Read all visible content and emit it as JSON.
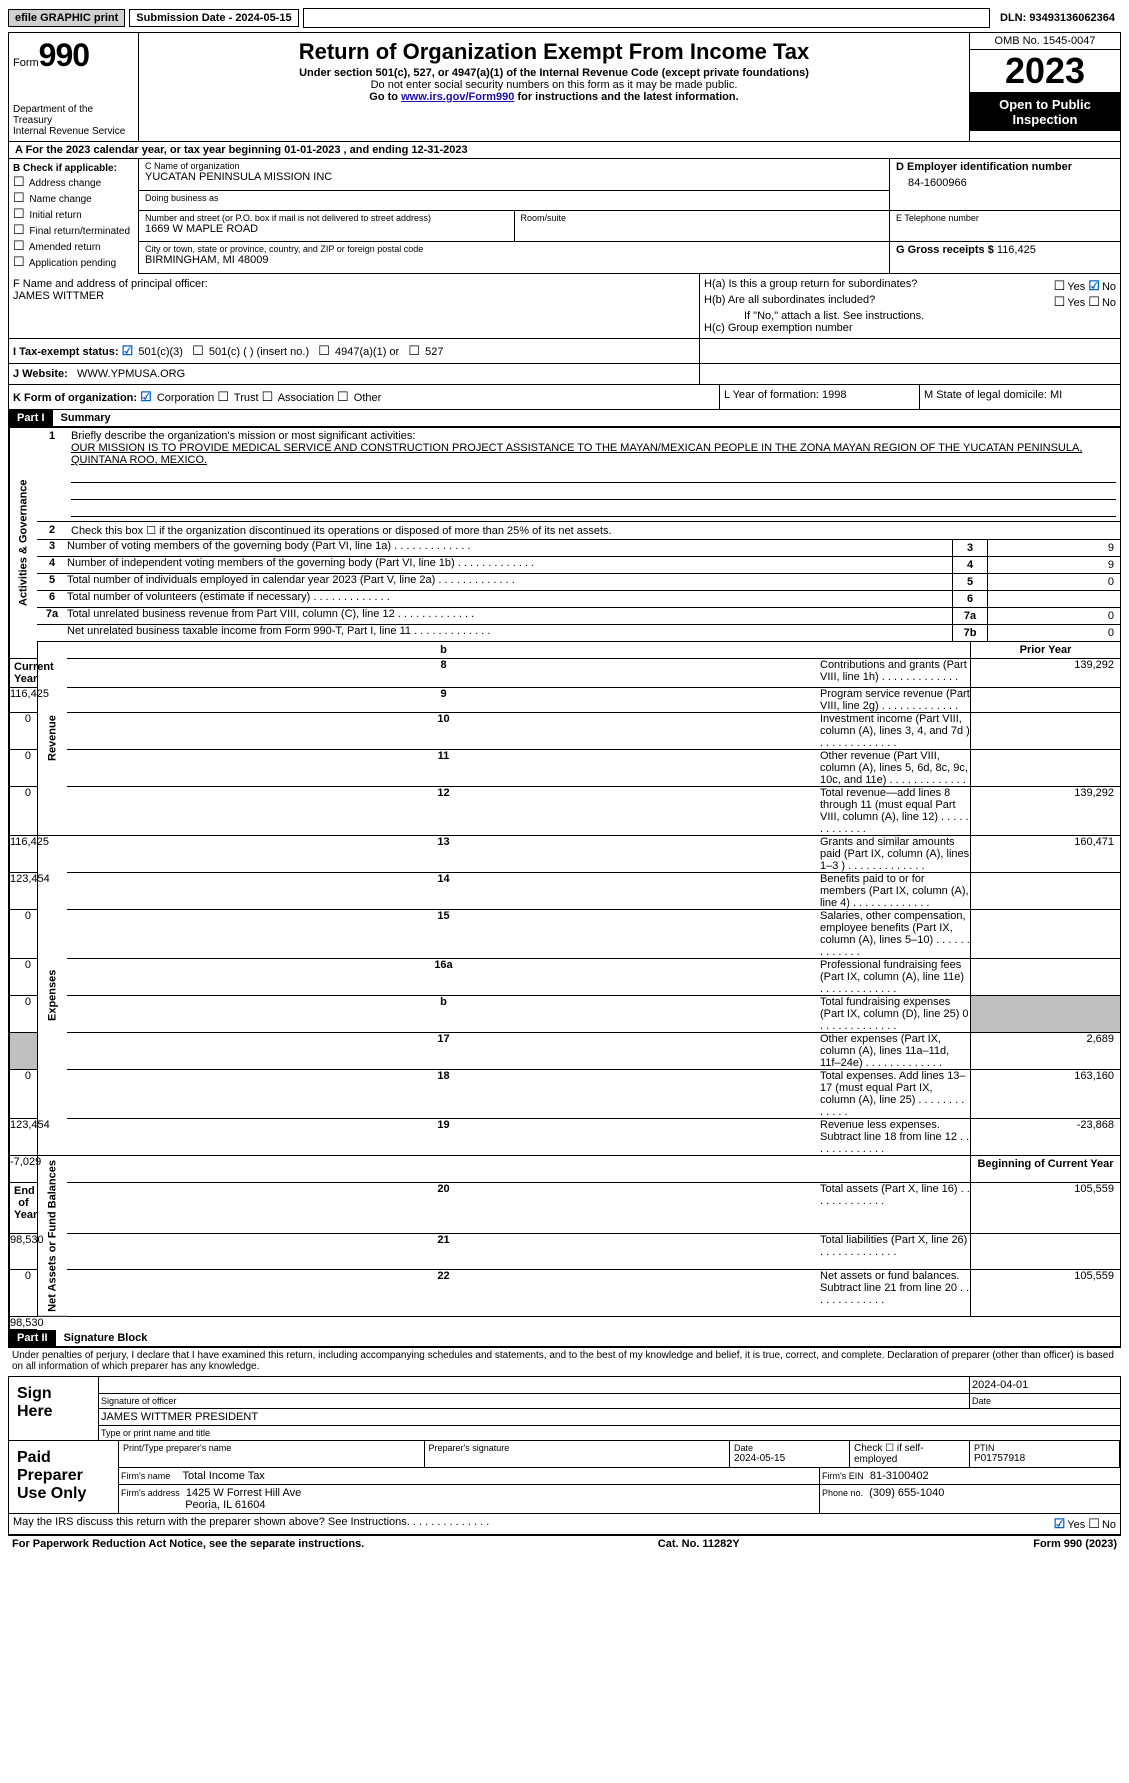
{
  "topbar": {
    "efile": "efile GRAPHIC print",
    "submission": "Submission Date - 2024-05-15",
    "dln": "DLN: 93493136062364"
  },
  "header": {
    "form_label": "Form",
    "form_number": "990",
    "dept": "Department of the Treasury",
    "irs": "Internal Revenue Service",
    "title": "Return of Organization Exempt From Income Tax",
    "subtitle": "Under section 501(c), 527, or 4947(a)(1) of the Internal Revenue Code (except private foundations)",
    "note1": "Do not enter social security numbers on this form as it may be made public.",
    "note2_prefix": "Go to ",
    "note2_link": "www.irs.gov/Form990",
    "note2_suffix": " for instructions and the latest information.",
    "omb": "OMB No. 1545-0047",
    "year": "2023",
    "open": "Open to Public Inspection"
  },
  "row_a": "A For the 2023 calendar year, or tax year beginning 01-01-2023    , and ending 12-31-2023",
  "section_b": {
    "label": "B Check if applicable:",
    "items": [
      "Address change",
      "Name change",
      "Initial return",
      "Final return/terminated",
      "Amended return",
      "Application pending"
    ]
  },
  "section_c": {
    "name_label": "C Name of organization",
    "name": "YUCATAN PENINSULA MISSION INC",
    "dba_label": "Doing business as",
    "street_label": "Number and street (or P.O. box if mail is not delivered to street address)",
    "street": "1669 W MAPLE ROAD",
    "room_label": "Room/suite",
    "city_label": "City or town, state or province, country, and ZIP or foreign postal code",
    "city": "BIRMINGHAM, MI  48009"
  },
  "section_d": {
    "ein_label": "D Employer identification number",
    "ein": "84-1600966",
    "phone_label": "E Telephone number",
    "gross_label": "G Gross receipts $",
    "gross": "116,425"
  },
  "section_f": {
    "label": "F  Name and address of principal officer:",
    "name": "JAMES WITTMER"
  },
  "section_h": {
    "ha": "H(a)  Is this a group return for subordinates?",
    "hb": "H(b)  Are all subordinates included?",
    "hb_note": "If \"No,\" attach a list. See instructions.",
    "hc": "H(c)  Group exemption number",
    "yes": "Yes",
    "no": "No"
  },
  "row_i": {
    "label": "I    Tax-exempt status:",
    "opt1": "501(c)(3)",
    "opt2": "501(c) (  ) (insert no.)",
    "opt3": "4947(a)(1) or",
    "opt4": "527"
  },
  "row_j": {
    "label": "J    Website:",
    "value": "WWW.YPMUSA.ORG"
  },
  "row_k": {
    "label": "K Form of organization:",
    "opts": [
      "Corporation",
      "Trust",
      "Association",
      "Other"
    ],
    "l": "L Year of formation: 1998",
    "m": "M State of legal domicile: MI"
  },
  "part1": {
    "header": "Part I",
    "title": "Summary",
    "q1_label": "Briefly describe the organization's mission or most significant activities:",
    "q1_text": "OUR MISSION IS TO PROVIDE MEDICAL SERVICE AND CONSTRUCTION PROJECT ASSISTANCE TO THE MAYAN/MEXICAN PEOPLE IN THE ZONA MAYAN REGION OF THE YUCATAN PENINSULA, QUINTANA ROO, MEXICO.",
    "q2": "Check this box ☐ if the organization discontinued its operations or disposed of more than 25% of its net assets.",
    "lines_gov": [
      {
        "n": "3",
        "d": "Number of voting members of the governing body (Part VI, line 1a)",
        "box": "3",
        "v": "9"
      },
      {
        "n": "4",
        "d": "Number of independent voting members of the governing body (Part VI, line 1b)",
        "box": "4",
        "v": "9"
      },
      {
        "n": "5",
        "d": "Total number of individuals employed in calendar year 2023 (Part V, line 2a)",
        "box": "5",
        "v": "0"
      },
      {
        "n": "6",
        "d": "Total number of volunteers (estimate if necessary)",
        "box": "6",
        "v": ""
      },
      {
        "n": "7a",
        "d": "Total unrelated business revenue from Part VIII, column (C), line 12",
        "box": "7a",
        "v": "0"
      },
      {
        "n": "",
        "d": "Net unrelated business taxable income from Form 990-T, Part I, line 11",
        "box": "7b",
        "v": "0"
      }
    ],
    "col_hdr_prior": "Prior Year",
    "col_hdr_current": "Current Year",
    "lines_rev": [
      {
        "n": "8",
        "d": "Contributions and grants (Part VIII, line 1h)",
        "p": "139,292",
        "c": "116,425"
      },
      {
        "n": "9",
        "d": "Program service revenue (Part VIII, line 2g)",
        "p": "",
        "c": "0"
      },
      {
        "n": "10",
        "d": "Investment income (Part VIII, column (A), lines 3, 4, and 7d )",
        "p": "",
        "c": "0"
      },
      {
        "n": "11",
        "d": "Other revenue (Part VIII, column (A), lines 5, 6d, 8c, 9c, 10c, and 11e)",
        "p": "",
        "c": "0"
      },
      {
        "n": "12",
        "d": "Total revenue—add lines 8 through 11 (must equal Part VIII, column (A), line 12)",
        "p": "139,292",
        "c": "116,425"
      }
    ],
    "lines_exp": [
      {
        "n": "13",
        "d": "Grants and similar amounts paid (Part IX, column (A), lines 1–3 )",
        "p": "160,471",
        "c": "123,454"
      },
      {
        "n": "14",
        "d": "Benefits paid to or for members (Part IX, column (A), line 4)",
        "p": "",
        "c": "0"
      },
      {
        "n": "15",
        "d": "Salaries, other compensation, employee benefits (Part IX, column (A), lines 5–10)",
        "p": "",
        "c": "0"
      },
      {
        "n": "16a",
        "d": "Professional fundraising fees (Part IX, column (A), line 11e)",
        "p": "",
        "c": "0"
      },
      {
        "n": "b",
        "d": "Total fundraising expenses (Part IX, column (D), line 25) 0",
        "p": "SHADE",
        "c": "SHADE"
      },
      {
        "n": "17",
        "d": "Other expenses (Part IX, column (A), lines 11a–11d, 11f–24e)",
        "p": "2,689",
        "c": "0"
      },
      {
        "n": "18",
        "d": "Total expenses. Add lines 13–17 (must equal Part IX, column (A), line 25)",
        "p": "163,160",
        "c": "123,454"
      },
      {
        "n": "19",
        "d": "Revenue less expenses. Subtract line 18 from line 12",
        "p": "-23,868",
        "c": "-7,029"
      }
    ],
    "col_hdr_begin": "Beginning of Current Year",
    "col_hdr_end": "End of Year",
    "lines_net": [
      {
        "n": "20",
        "d": "Total assets (Part X, line 16)",
        "p": "105,559",
        "c": "98,530"
      },
      {
        "n": "21",
        "d": "Total liabilities (Part X, line 26)",
        "p": "",
        "c": "0"
      },
      {
        "n": "22",
        "d": "Net assets or fund balances. Subtract line 21 from line 20",
        "p": "105,559",
        "c": "98,530"
      }
    ],
    "vlabels": {
      "gov": "Activities & Governance",
      "rev": "Revenue",
      "exp": "Expenses",
      "net": "Net Assets or Fund Balances"
    }
  },
  "part2": {
    "header": "Part II",
    "title": "Signature Block",
    "declaration": "Under penalties of perjury, I declare that I have examined this return, including accompanying schedules and statements, and to the best of my knowledge and belief, it is true, correct, and complete. Declaration of preparer (other than officer) is based on all information of which preparer has any knowledge.",
    "sign_here": "Sign Here",
    "sig_date": "2024-04-01",
    "sig_officer_label": "Signature of officer",
    "sig_date_label": "Date",
    "officer": "JAMES WITTMER  PRESIDENT",
    "type_label": "Type or print name and title",
    "paid": "Paid Preparer Use Only",
    "prep_name_label": "Print/Type preparer's name",
    "prep_sig_label": "Preparer's signature",
    "prep_date_label": "Date",
    "prep_date": "2024-05-15",
    "check_self": "Check ☐ if self-employed",
    "ptin_label": "PTIN",
    "ptin": "P01757918",
    "firm_name_label": "Firm's name",
    "firm_name": "Total Income Tax",
    "firm_ein_label": "Firm's EIN",
    "firm_ein": "81-3100402",
    "firm_addr_label": "Firm's address",
    "firm_addr1": "1425 W Forrest Hill Ave",
    "firm_addr2": "Peoria, IL  61604",
    "phone_label": "Phone no.",
    "phone": "(309) 655-1040",
    "discuss": "May the IRS discuss this return with the preparer shown above? See Instructions."
  },
  "footer": {
    "paperwork": "For Paperwork Reduction Act Notice, see the separate instructions.",
    "cat": "Cat. No. 11282Y",
    "form": "Form 990 (2023)"
  }
}
